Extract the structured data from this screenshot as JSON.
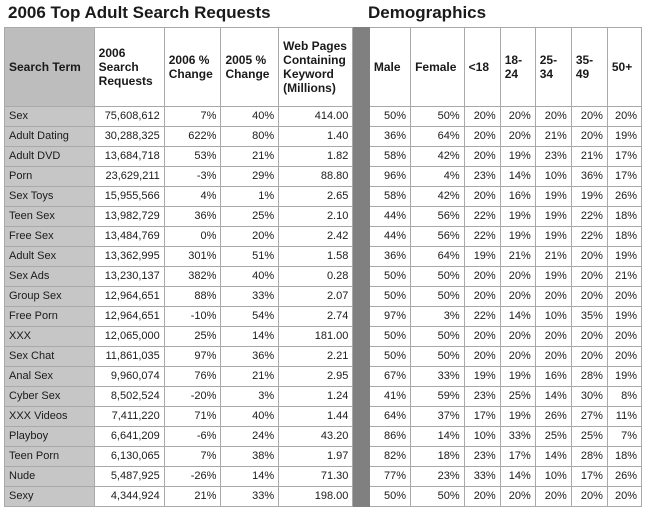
{
  "titles": {
    "left": "2006 Top Adult Search Requests",
    "right": "Demographics"
  },
  "headers": {
    "term": "Search Term",
    "requests": "2006 Search Requests",
    "change2006": "2006 % Change",
    "change2005": "2005 % Change",
    "pages": "Web Pages Containing Keyword (Millions)",
    "male": "Male",
    "female": "Female",
    "lt18": "<18",
    "a18_24": "18-24",
    "a25_34": "25-34",
    "a35_49": "35-49",
    "a50p": "50+"
  },
  "rows": [
    {
      "term": "Sex",
      "requests": "75,608,612",
      "ch06": "7%",
      "ch05": "40%",
      "pages": "414.00",
      "male": "50%",
      "female": "50%",
      "lt18": "20%",
      "a1824": "20%",
      "a2534": "20%",
      "a3549": "20%",
      "a50": "20%"
    },
    {
      "term": "Adult Dating",
      "requests": "30,288,325",
      "ch06": "622%",
      "ch05": "80%",
      "pages": "1.40",
      "male": "36%",
      "female": "64%",
      "lt18": "20%",
      "a1824": "20%",
      "a2534": "21%",
      "a3549": "20%",
      "a50": "19%"
    },
    {
      "term": "Adult DVD",
      "requests": "13,684,718",
      "ch06": "53%",
      "ch05": "21%",
      "pages": "1.82",
      "male": "58%",
      "female": "42%",
      "lt18": "20%",
      "a1824": "19%",
      "a2534": "23%",
      "a3549": "21%",
      "a50": "17%"
    },
    {
      "term": "Porn",
      "requests": "23,629,211",
      "ch06": "-3%",
      "ch05": "29%",
      "pages": "88.80",
      "male": "96%",
      "female": "4%",
      "lt18": "23%",
      "a1824": "14%",
      "a2534": "10%",
      "a3549": "36%",
      "a50": "17%"
    },
    {
      "term": "Sex Toys",
      "requests": "15,955,566",
      "ch06": "4%",
      "ch05": "1%",
      "pages": "2.65",
      "male": "58%",
      "female": "42%",
      "lt18": "20%",
      "a1824": "16%",
      "a2534": "19%",
      "a3549": "19%",
      "a50": "26%"
    },
    {
      "term": "Teen Sex",
      "requests": "13,982,729",
      "ch06": "36%",
      "ch05": "25%",
      "pages": "2.10",
      "male": "44%",
      "female": "56%",
      "lt18": "22%",
      "a1824": "19%",
      "a2534": "19%",
      "a3549": "22%",
      "a50": "18%"
    },
    {
      "term": "Free Sex",
      "requests": "13,484,769",
      "ch06": "0%",
      "ch05": "20%",
      "pages": "2.42",
      "male": "44%",
      "female": "56%",
      "lt18": "22%",
      "a1824": "19%",
      "a2534": "19%",
      "a3549": "22%",
      "a50": "18%"
    },
    {
      "term": "Adult Sex",
      "requests": "13,362,995",
      "ch06": "301%",
      "ch05": "51%",
      "pages": "1.58",
      "male": "36%",
      "female": "64%",
      "lt18": "19%",
      "a1824": "21%",
      "a2534": "21%",
      "a3549": "20%",
      "a50": "19%"
    },
    {
      "term": "Sex Ads",
      "requests": "13,230,137",
      "ch06": "382%",
      "ch05": "40%",
      "pages": "0.28",
      "male": "50%",
      "female": "50%",
      "lt18": "20%",
      "a1824": "20%",
      "a2534": "19%",
      "a3549": "20%",
      "a50": "21%"
    },
    {
      "term": "Group Sex",
      "requests": "12,964,651",
      "ch06": "88%",
      "ch05": "33%",
      "pages": "2.07",
      "male": "50%",
      "female": "50%",
      "lt18": "20%",
      "a1824": "20%",
      "a2534": "20%",
      "a3549": "20%",
      "a50": "20%"
    },
    {
      "term": "Free Porn",
      "requests": "12,964,651",
      "ch06": "-10%",
      "ch05": "54%",
      "pages": "2.74",
      "male": "97%",
      "female": "3%",
      "lt18": "22%",
      "a1824": "14%",
      "a2534": "10%",
      "a3549": "35%",
      "a50": "19%"
    },
    {
      "term": "XXX",
      "requests": "12,065,000",
      "ch06": "25%",
      "ch05": "14%",
      "pages": "181.00",
      "male": "50%",
      "female": "50%",
      "lt18": "20%",
      "a1824": "20%",
      "a2534": "20%",
      "a3549": "20%",
      "a50": "20%"
    },
    {
      "term": "Sex Chat",
      "requests": "11,861,035",
      "ch06": "97%",
      "ch05": "36%",
      "pages": "2.21",
      "male": "50%",
      "female": "50%",
      "lt18": "20%",
      "a1824": "20%",
      "a2534": "20%",
      "a3549": "20%",
      "a50": "20%"
    },
    {
      "term": "Anal Sex",
      "requests": "9,960,074",
      "ch06": "76%",
      "ch05": "21%",
      "pages": "2.95",
      "male": "67%",
      "female": "33%",
      "lt18": "19%",
      "a1824": "19%",
      "a2534": "16%",
      "a3549": "28%",
      "a50": "19%"
    },
    {
      "term": "Cyber Sex",
      "requests": "8,502,524",
      "ch06": "-20%",
      "ch05": "3%",
      "pages": "1.24",
      "male": "41%",
      "female": "59%",
      "lt18": "23%",
      "a1824": "25%",
      "a2534": "14%",
      "a3549": "30%",
      "a50": "8%"
    },
    {
      "term": "XXX Videos",
      "requests": "7,411,220",
      "ch06": "71%",
      "ch05": "40%",
      "pages": "1.44",
      "male": "64%",
      "female": "37%",
      "lt18": "17%",
      "a1824": "19%",
      "a2534": "26%",
      "a3549": "27%",
      "a50": "11%"
    },
    {
      "term": "Playboy",
      "requests": "6,641,209",
      "ch06": "-6%",
      "ch05": "24%",
      "pages": "43.20",
      "male": "86%",
      "female": "14%",
      "lt18": "10%",
      "a1824": "33%",
      "a2534": "25%",
      "a3549": "25%",
      "a50": "7%"
    },
    {
      "term": "Teen Porn",
      "requests": "6,130,065",
      "ch06": "7%",
      "ch05": "38%",
      "pages": "1.97",
      "male": "82%",
      "female": "18%",
      "lt18": "23%",
      "a1824": "17%",
      "a2534": "14%",
      "a3549": "28%",
      "a50": "18%"
    },
    {
      "term": "Nude",
      "requests": "5,487,925",
      "ch06": "-26%",
      "ch05": "14%",
      "pages": "71.30",
      "male": "77%",
      "female": "23%",
      "lt18": "33%",
      "a1824": "14%",
      "a2534": "10%",
      "a3549": "17%",
      "a50": "26%"
    },
    {
      "term": "Sexy",
      "requests": "4,344,924",
      "ch06": "21%",
      "ch05": "33%",
      "pages": "198.00",
      "male": "50%",
      "female": "50%",
      "lt18": "20%",
      "a1824": "20%",
      "a2534": "20%",
      "a3549": "20%",
      "a50": "20%"
    }
  ]
}
